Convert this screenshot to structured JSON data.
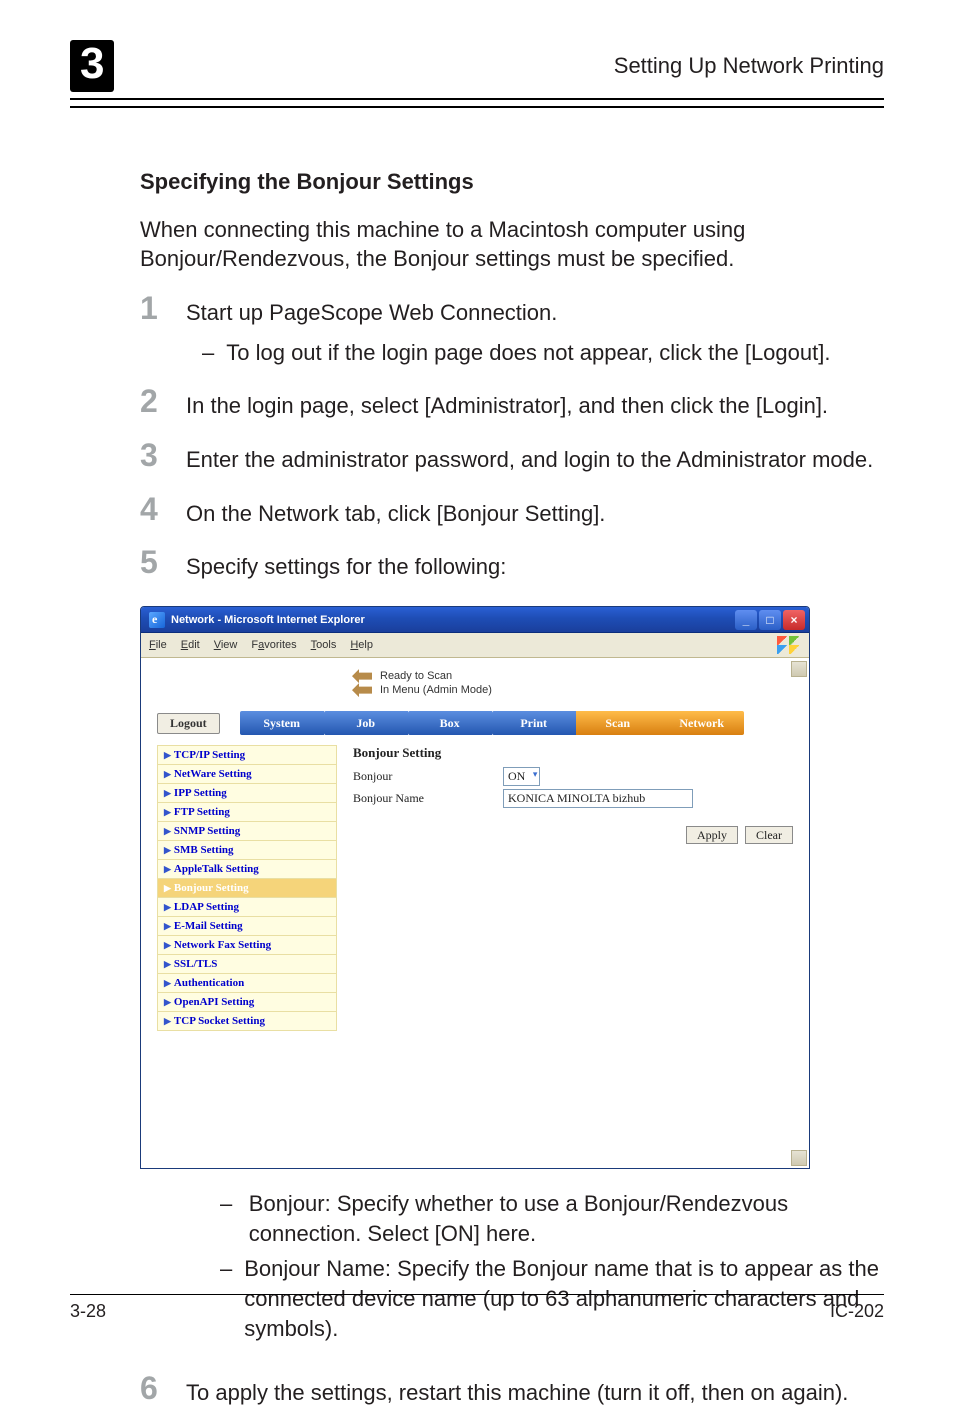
{
  "header": {
    "chapter_number": "3",
    "right_title": "Setting Up Network Printing"
  },
  "section": {
    "title": "Specifying the Bonjour Settings",
    "intro": "When connecting this machine to a Macintosh computer using Bonjour/Rendezvous, the Bonjour settings must be specified."
  },
  "steps": [
    {
      "n": "1",
      "text": "Start up PageScope Web Connection.",
      "sub": "To log out if the login page does not appear, click the [Logout]."
    },
    {
      "n": "2",
      "text": "In the login page, select [Administrator], and then click the [Login]."
    },
    {
      "n": "3",
      "text": "Enter the administrator password, and login to the Administrator mode."
    },
    {
      "n": "4",
      "text": "On the Network tab, click [Bonjour Setting]."
    },
    {
      "n": "5",
      "text": "Specify settings for the following:"
    }
  ],
  "ie": {
    "title": "Network - Microsoft Internet Explorer",
    "menu": [
      "File",
      "Edit",
      "View",
      "Favorites",
      "Tools",
      "Help"
    ],
    "status1": "Ready to Scan",
    "status2": "In Menu (Admin Mode)",
    "logout": "Logout",
    "tabs": [
      "System",
      "Job",
      "Box",
      "Print",
      "Scan",
      "Network"
    ],
    "tab_styles": [
      "blue",
      "blue",
      "blue",
      "blue",
      "orange",
      "orange"
    ],
    "active_tab": 5,
    "sidemenu": [
      "TCP/IP Setting",
      "NetWare Setting",
      "IPP Setting",
      "FTP Setting",
      "SNMP Setting",
      "SMB Setting",
      "AppleTalk Setting",
      "Bonjour Setting",
      "LDAP Setting",
      "E-Mail Setting",
      "Network Fax Setting",
      "SSL/TLS",
      "Authentication",
      "OpenAPI Setting",
      "TCP Socket Setting"
    ],
    "side_selected": 7,
    "panel": {
      "heading": "Bonjour Setting",
      "row1_label": "Bonjour",
      "row1_value": "ON",
      "row2_label": "Bonjour Name",
      "row2_value": "KONICA MINOLTA bizhub",
      "apply": "Apply",
      "clear": "Clear"
    }
  },
  "post_bullets": [
    "Bonjour: Specify whether to use a Bonjour/Rendezvous connection. Select [ON] here.",
    "Bonjour Name: Specify the Bonjour name that is to appear as the connected device name (up to 63 alphanumeric characters and symbols)."
  ],
  "step6": {
    "n": "6",
    "text": "To apply the settings, restart this machine (turn it off, then on again)."
  },
  "footer": {
    "left": "3-28",
    "right": "IC-202"
  }
}
